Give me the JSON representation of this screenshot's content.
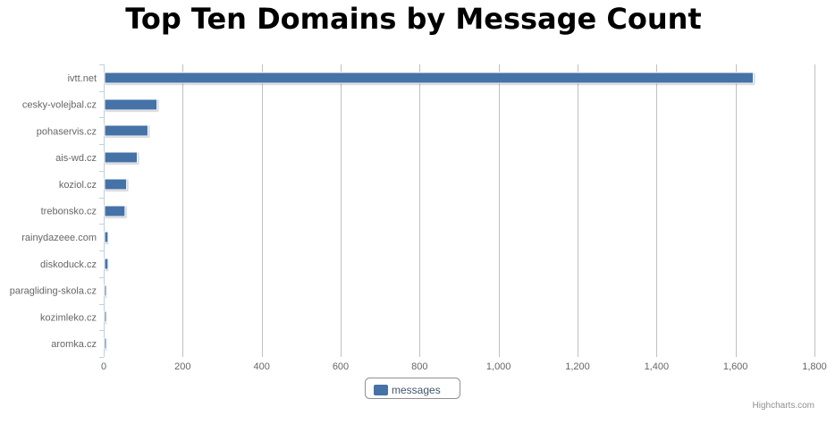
{
  "chart_data": {
    "type": "bar",
    "title": "Top Ten Domains by Message Count",
    "categories": [
      "ivtt.net",
      "cesky-volejbal.cz",
      "pohaservis.cz",
      "ais-wd.cz",
      "koziol.cz",
      "trebonsko.cz",
      "rainydazeee.com",
      "diskoduck.cz",
      "paragliding-skola.cz",
      "kozimleko.cz",
      "aromka.cz"
    ],
    "series": [
      {
        "name": "messages",
        "values": [
          1645,
          135,
          112,
          85,
          58,
          54,
          11,
          11,
          6,
          3,
          3
        ]
      }
    ],
    "xlim": [
      0,
      1800
    ],
    "ticks": [
      0,
      200,
      400,
      600,
      800,
      1000,
      1200,
      1400,
      1600,
      1800
    ],
    "tick_labels": [
      "0",
      "200",
      "400",
      "600",
      "800",
      "1,000",
      "1,200",
      "1,400",
      "1,600",
      "1,800"
    ],
    "orientation": "horizontal",
    "grid": true,
    "legend": "bottom-center",
    "colors": {
      "bar": "#4572A7",
      "grid": "#C0C0C0",
      "axis": "#C0D0E0"
    }
  },
  "credits": "Highcharts.com"
}
